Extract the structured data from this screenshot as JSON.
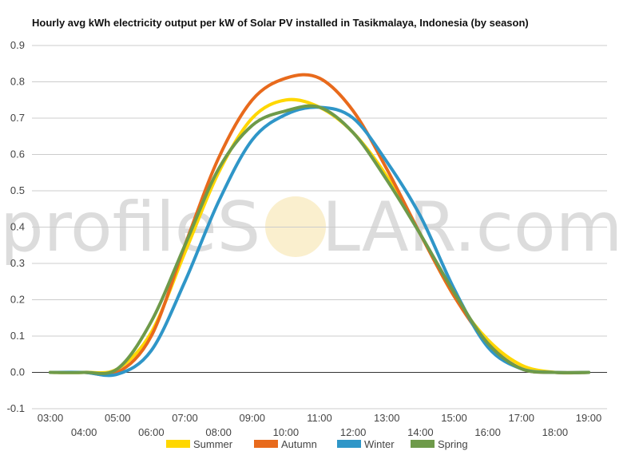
{
  "chart_data": {
    "type": "line",
    "title": "Hourly avg kWh electricity output per kW of Solar PV installed in Tasikmalaya, Indonesia (by season)",
    "xlabel": "",
    "ylabel": "",
    "ylim": [
      -0.1,
      0.9
    ],
    "yticks": [
      -0.1,
      0.0,
      0.1,
      0.2,
      0.3,
      0.4,
      0.5,
      0.6,
      0.7,
      0.8,
      0.9
    ],
    "ytick_labels": [
      "-0.1",
      "0.0",
      "0.1",
      "0.2",
      "0.3",
      "0.4",
      "0.5",
      "0.6",
      "0.7",
      "0.8",
      "0.9"
    ],
    "x": [
      3,
      4,
      5,
      6,
      7,
      8,
      9,
      10,
      11,
      12,
      13,
      14,
      15,
      16,
      17,
      18,
      19
    ],
    "x_labels": [
      "03:00",
      "04:00",
      "05:00",
      "06:00",
      "07:00",
      "08:00",
      "09:00",
      "10:00",
      "11:00",
      "12:00",
      "13:00",
      "14:00",
      "15:00",
      "16:00",
      "17:00",
      "18:00",
      "19:00"
    ],
    "grid": true,
    "legend_position": "bottom",
    "watermark": {
      "left": "profileS",
      "right": "LAR.com"
    },
    "series": [
      {
        "name": "Summer",
        "color": "#ffd700",
        "values": [
          0.0,
          0.0,
          0.01,
          0.11,
          0.33,
          0.55,
          0.7,
          0.75,
          0.73,
          0.66,
          0.54,
          0.38,
          0.21,
          0.09,
          0.02,
          0.0,
          0.0
        ]
      },
      {
        "name": "Autumn",
        "color": "#e86a1c",
        "values": [
          0.0,
          0.0,
          0.0,
          0.1,
          0.35,
          0.59,
          0.75,
          0.81,
          0.81,
          0.72,
          0.56,
          0.38,
          0.21,
          0.08,
          0.01,
          0.0,
          0.0
        ]
      },
      {
        "name": "Winter",
        "color": "#2f96c8",
        "values": [
          0.0,
          0.0,
          -0.005,
          0.06,
          0.25,
          0.47,
          0.64,
          0.71,
          0.73,
          0.7,
          0.58,
          0.43,
          0.23,
          0.07,
          0.01,
          0.0,
          0.0
        ]
      },
      {
        "name": "Spring",
        "color": "#6e9a4a",
        "values": [
          0.0,
          0.0,
          0.01,
          0.14,
          0.35,
          0.56,
          0.68,
          0.72,
          0.73,
          0.66,
          0.53,
          0.38,
          0.22,
          0.08,
          0.01,
          0.0,
          0.0
        ]
      }
    ]
  }
}
